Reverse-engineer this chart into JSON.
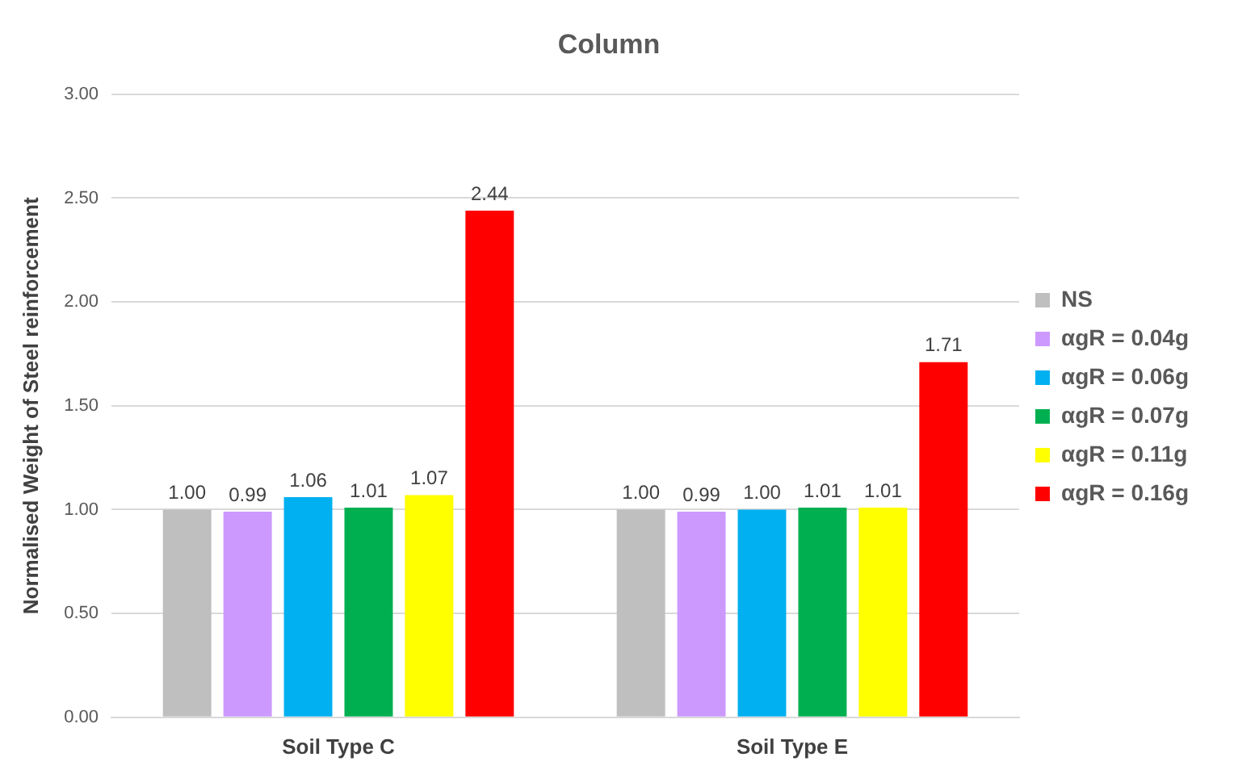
{
  "chart_data": {
    "type": "bar",
    "title": "Column",
    "ylabel": "Normalised Weight of Steel reinforcement",
    "categories": [
      "Soil Type C",
      "Soil Type E"
    ],
    "series": [
      {
        "name": "NS",
        "color": "#bfbfbf",
        "values": [
          1.0,
          1.0
        ],
        "value_labels": [
          "1.00",
          "1.00"
        ]
      },
      {
        "name": "αgR = 0.04g",
        "color": "#cc99ff",
        "values": [
          0.99,
          0.99
        ],
        "value_labels": [
          "0.99",
          "0.99"
        ]
      },
      {
        "name": "αgR = 0.06g",
        "color": "#00b0f0",
        "values": [
          1.06,
          1.0
        ],
        "value_labels": [
          "1.06",
          "1.00"
        ]
      },
      {
        "name": "αgR = 0.07g",
        "color": "#00b050",
        "values": [
          1.01,
          1.01
        ],
        "value_labels": [
          "1.01",
          "1.01"
        ]
      },
      {
        "name": "αgR = 0.11g",
        "color": "#ffff00",
        "values": [
          1.07,
          1.01
        ],
        "value_labels": [
          "1.07",
          "1.01"
        ]
      },
      {
        "name": "αgR = 0.16g",
        "color": "#ff0000",
        "values": [
          2.44,
          1.71
        ],
        "value_labels": [
          "2.44",
          "1.71"
        ]
      }
    ],
    "ylim": [
      0,
      3
    ],
    "yticks": [
      {
        "value": 0,
        "label": "0.00"
      },
      {
        "value": 0.5,
        "label": "0.50"
      },
      {
        "value": 1,
        "label": "1.00"
      },
      {
        "value": 1.5,
        "label": "1.50"
      },
      {
        "value": 2,
        "label": "2.00"
      },
      {
        "value": 2.5,
        "label": "2.50"
      },
      {
        "value": 3,
        "label": "3.00"
      }
    ],
    "grid": "y",
    "legend": "right"
  }
}
